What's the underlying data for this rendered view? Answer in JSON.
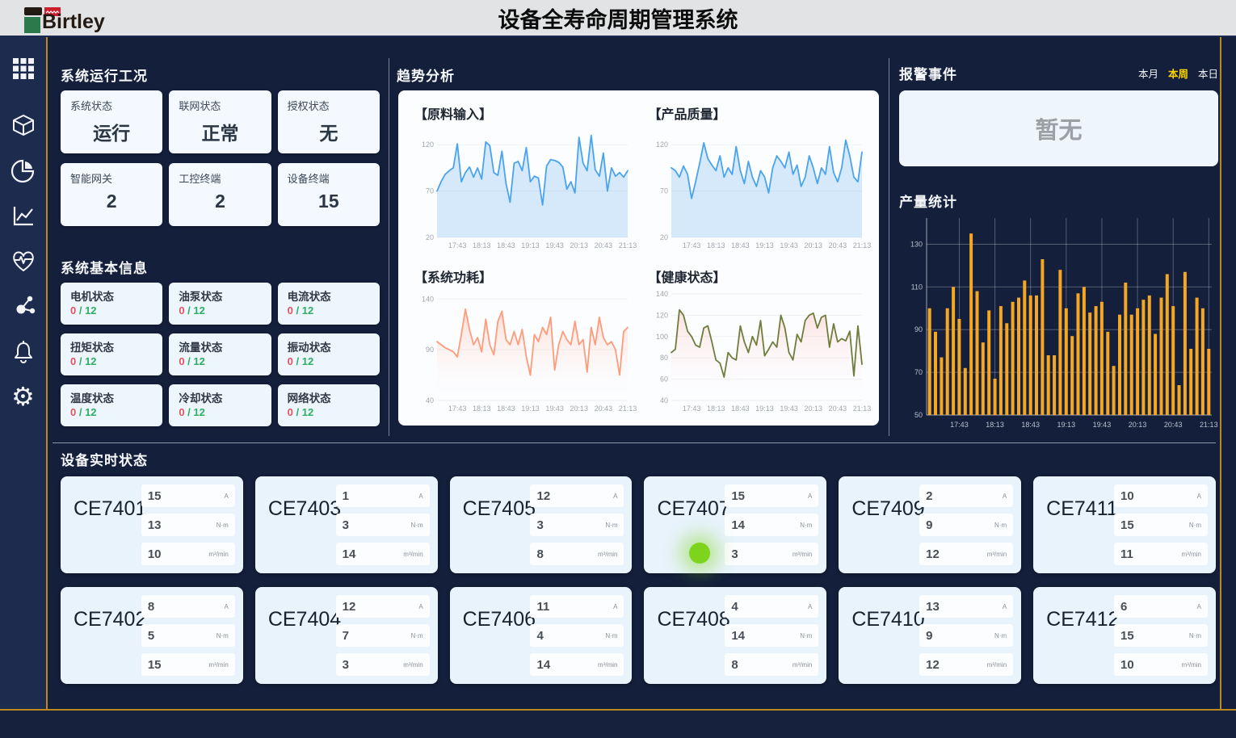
{
  "header": {
    "logo_text": "Birtley",
    "title": "设备全寿命周期管理系统"
  },
  "sidebar": {
    "icons": [
      "apps-grid-icon",
      "cube-icon",
      "pie-chart-icon",
      "line-chart-icon",
      "health-heart-icon",
      "molecule-icon",
      "bell-icon",
      "gear-icon"
    ]
  },
  "system_status": {
    "title": "系统运行工况",
    "cards": [
      {
        "label": "系统状态",
        "value": "运行"
      },
      {
        "label": "联网状态",
        "value": "正常"
      },
      {
        "label": "授权状态",
        "value": "无"
      },
      {
        "label": "智能网关",
        "value": "2"
      },
      {
        "label": "工控终端",
        "value": "2"
      },
      {
        "label": "设备终端",
        "value": "15"
      }
    ]
  },
  "system_info": {
    "title": "系统基本信息",
    "cards": [
      {
        "label": "电机状态",
        "current": "0",
        "total": "12"
      },
      {
        "label": "油泵状态",
        "current": "0",
        "total": "12"
      },
      {
        "label": "电流状态",
        "current": "0",
        "total": "12"
      },
      {
        "label": "扭矩状态",
        "current": "0",
        "total": "12"
      },
      {
        "label": "流量状态",
        "current": "0",
        "total": "12"
      },
      {
        "label": "振动状态",
        "current": "0",
        "total": "12"
      },
      {
        "label": "温度状态",
        "current": "0",
        "total": "12"
      },
      {
        "label": "冷却状态",
        "current": "0",
        "total": "12"
      },
      {
        "label": "网络状态",
        "current": "0",
        "total": "12"
      }
    ]
  },
  "trend": {
    "title": "趋势分析"
  },
  "alarm": {
    "title": "报警事件",
    "tabs": [
      {
        "label": "本月",
        "active": false
      },
      {
        "label": "本周",
        "active": true
      },
      {
        "label": "本日",
        "active": false
      }
    ],
    "empty_text": "暂无"
  },
  "production": {
    "title": "产量统计"
  },
  "equipment": {
    "section_title": "设备实时状态",
    "units": [
      "A",
      "N·m",
      "m³/min"
    ],
    "devices": [
      {
        "name": "CE7401",
        "values": [
          15,
          13,
          10
        ],
        "running": false
      },
      {
        "name": "CE7403",
        "values": [
          1,
          3,
          14
        ],
        "running": false
      },
      {
        "name": "CE7405",
        "values": [
          12,
          3,
          8
        ],
        "running": false
      },
      {
        "name": "CE7407",
        "values": [
          15,
          14,
          3
        ],
        "running": true
      },
      {
        "name": "CE7409",
        "values": [
          2,
          9,
          12
        ],
        "running": false
      },
      {
        "name": "CE7411",
        "values": [
          10,
          15,
          11
        ],
        "running": false
      },
      {
        "name": "CE7402",
        "values": [
          8,
          5,
          15
        ],
        "running": false
      },
      {
        "name": "CE7404",
        "values": [
          12,
          7,
          3
        ],
        "running": false
      },
      {
        "name": "CE7406",
        "values": [
          11,
          4,
          14
        ],
        "running": false
      },
      {
        "name": "CE7408",
        "values": [
          4,
          14,
          8
        ],
        "running": false
      },
      {
        "name": "CE7410",
        "values": [
          13,
          9,
          12
        ],
        "running": false
      },
      {
        "name": "CE7412",
        "values": [
          6,
          15,
          10
        ],
        "running": false
      }
    ]
  },
  "colors": {
    "gold_frame": "#bb8a1e",
    "tab_active_yellow": "#ffd400",
    "status_red": "#e0535f",
    "status_green": "#2fae63",
    "running_green": "#7ed41c"
  },
  "chart_data": [
    {
      "id": "raw-input",
      "type": "line",
      "title": "【原料输入】",
      "x_labels": [
        "17:43",
        "18:13",
        "18:43",
        "19:13",
        "19:43",
        "20:13",
        "20:43",
        "21:13"
      ],
      "y_ticks": [
        20,
        70,
        120
      ],
      "ylim": [
        20,
        135
      ],
      "grid": true,
      "legend": "none",
      "line_color": "#4aa3ee",
      "fill_from": "rgba(77,163,238,0.22)",
      "fill_to": "rgba(77,163,238,0.22)",
      "values": [
        70,
        80,
        88,
        92,
        95,
        121,
        80,
        90,
        96,
        85,
        95,
        83,
        123,
        119,
        90,
        87,
        113,
        78,
        58,
        100,
        102,
        92,
        117,
        80,
        86,
        84,
        55,
        97,
        104,
        103,
        101,
        96,
        72,
        80,
        68,
        128,
        100,
        92,
        130,
        93,
        86,
        111,
        70,
        95,
        86,
        90,
        85,
        92
      ]
    },
    {
      "id": "product-quality",
      "type": "line",
      "title": "【产品质量】",
      "x_labels": [
        "17:43",
        "18:13",
        "18:43",
        "19:13",
        "19:43",
        "20:13",
        "20:43",
        "21:13"
      ],
      "y_ticks": [
        20,
        70,
        120
      ],
      "ylim": [
        20,
        135
      ],
      "grid": true,
      "legend": "none",
      "line_color": "#4aa3ee",
      "fill_from": "rgba(77,163,238,0.22)",
      "fill_to": "rgba(77,163,238,0.22)",
      "values": [
        95,
        92,
        85,
        97,
        88,
        62,
        80,
        100,
        122,
        105,
        98,
        92,
        108,
        85,
        95,
        88,
        118,
        92,
        78,
        102,
        85,
        75,
        92,
        85,
        68,
        95,
        108,
        102,
        95,
        112,
        88,
        98,
        75,
        85,
        108,
        95,
        78,
        95,
        88,
        118,
        90,
        80,
        95,
        125,
        108,
        85,
        80,
        112
      ]
    },
    {
      "id": "system-power",
      "type": "line",
      "title": "【系统功耗】",
      "x_labels": [
        "17:43",
        "18:13",
        "18:43",
        "19:13",
        "19:43",
        "20:13",
        "20:43",
        "21:13"
      ],
      "y_ticks": [
        40,
        90,
        140
      ],
      "ylim": [
        40,
        145
      ],
      "grid": true,
      "legend": "none",
      "line_color": "#ff9b7b",
      "fill_from": "rgba(255,155,123,0.35)",
      "fill_to": "rgba(255,255,255,0)",
      "values": [
        98,
        95,
        92,
        90,
        88,
        83,
        105,
        130,
        110,
        95,
        102,
        88,
        120,
        95,
        85,
        118,
        128,
        100,
        95,
        108,
        95,
        110,
        83,
        65,
        105,
        98,
        112,
        105,
        122,
        70,
        95,
        108,
        100,
        95,
        118,
        95,
        100,
        68,
        112,
        95,
        122,
        102,
        95,
        98,
        90,
        65,
        108,
        112
      ]
    },
    {
      "id": "health-status",
      "type": "line",
      "title": "【健康状态】",
      "x_labels": [
        "17:43",
        "18:13",
        "18:43",
        "19:13",
        "19:43",
        "20:13",
        "20:43",
        "21:13"
      ],
      "y_ticks": [
        40,
        60,
        80,
        100,
        120,
        140
      ],
      "ylim": [
        40,
        140
      ],
      "grid": true,
      "legend": "none",
      "line_color": "#6f7d3c",
      "fill_from": "rgba(255,170,160,0.35)",
      "fill_to": "rgba(255,255,255,0)",
      "values": [
        85,
        88,
        125,
        120,
        105,
        100,
        92,
        90,
        108,
        110,
        95,
        78,
        75,
        62,
        85,
        80,
        78,
        110,
        95,
        85,
        100,
        92,
        115,
        82,
        88,
        95,
        90,
        120,
        108,
        85,
        78,
        102,
        95,
        115,
        120,
        122,
        108,
        118,
        120,
        90,
        112,
        95,
        98,
        96,
        105,
        63,
        110,
        74
      ]
    },
    {
      "id": "production-output",
      "type": "bar",
      "title": "产量统计",
      "x_labels": [
        "17:43",
        "18:13",
        "18:43",
        "19:13",
        "19:43",
        "20:13",
        "20:43",
        "21:13"
      ],
      "y_ticks": [
        50,
        70,
        90,
        110,
        130
      ],
      "ylim": [
        50,
        140
      ],
      "grid": true,
      "legend": "none",
      "bar_color": "#f5a623",
      "values": [
        100,
        89,
        77,
        100,
        110,
        95,
        72,
        135,
        108,
        84,
        99,
        67,
        101,
        93,
        103,
        105,
        113,
        106,
        106,
        123,
        78,
        78,
        118,
        100,
        87,
        107,
        110,
        98,
        101,
        103,
        89,
        73,
        97,
        112,
        97,
        100,
        104,
        106,
        88,
        105,
        116,
        101,
        64,
        117,
        81,
        105,
        100,
        81
      ]
    }
  ]
}
